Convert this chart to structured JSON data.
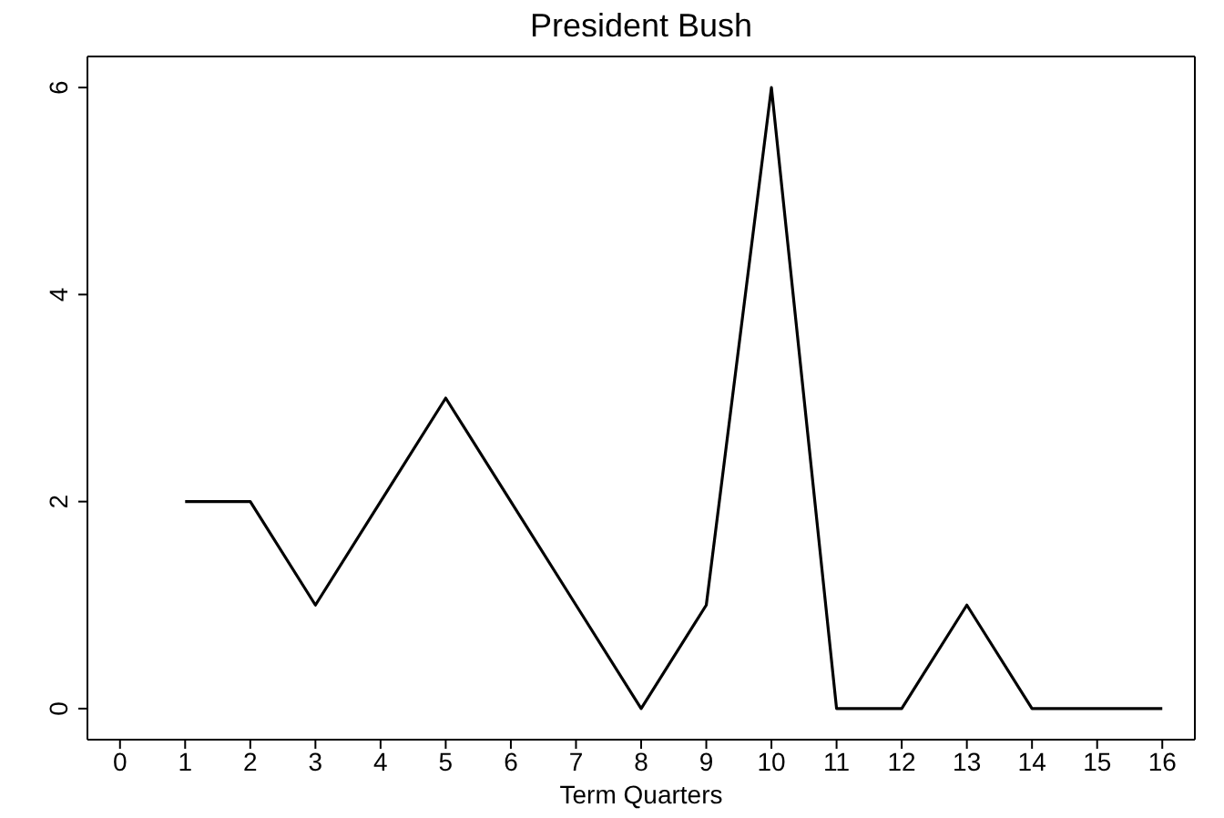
{
  "chart_data": {
    "type": "line",
    "title": "President Bush",
    "xlabel": "Term Quarters",
    "x": [
      1,
      2,
      3,
      4,
      5,
      6,
      7,
      8,
      9,
      10,
      11,
      12,
      13,
      14,
      15,
      16
    ],
    "series": [
      {
        "color": "#000000",
        "values": [
          2,
          2,
          1,
          2,
          3,
          2,
          1,
          0,
          1,
          6,
          0,
          0,
          1,
          0,
          0,
          0
        ]
      }
    ],
    "xlim": [
      -0.5,
      16.5
    ],
    "xticks": [
      0,
      1,
      2,
      3,
      4,
      5,
      6,
      7,
      8,
      9,
      10,
      11,
      12,
      13,
      14,
      15,
      16
    ],
    "ylim": [
      -0.3,
      6.3
    ],
    "yticks": [
      0,
      2,
      4,
      6
    ],
    "marker": "none",
    "line_style": "solid"
  }
}
